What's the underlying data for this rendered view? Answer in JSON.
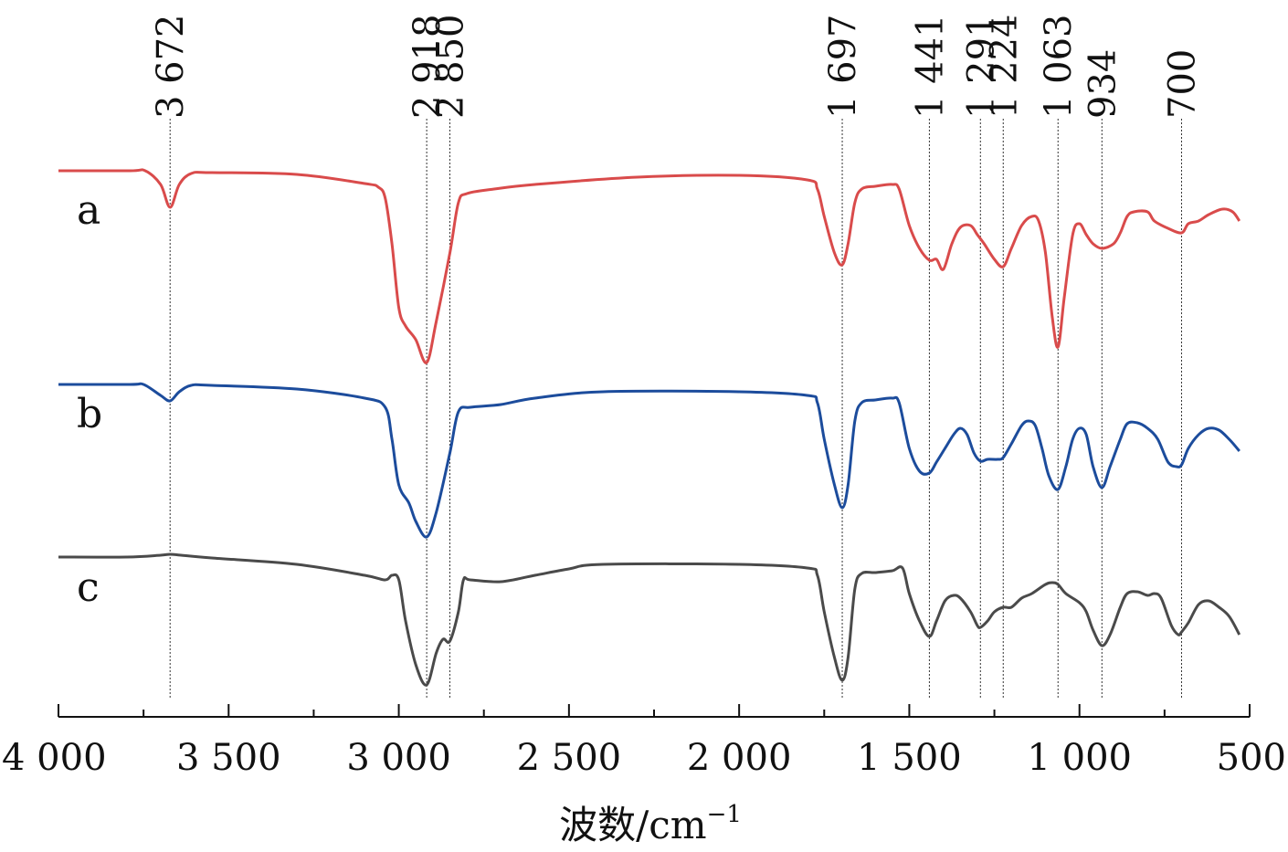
{
  "chart_data": {
    "type": "line",
    "xlabel_main": "波数/cm",
    "xlabel_sup": "−1",
    "x_range": [
      4000,
      500
    ],
    "x_reversed": true,
    "x_ticks": [
      {
        "value": 4000,
        "label": "4 000"
      },
      {
        "value": 3500,
        "label": "3 500"
      },
      {
        "value": 3000,
        "label": "3 000"
      },
      {
        "value": 2500,
        "label": "2 500"
      },
      {
        "value": 2000,
        "label": "2 000"
      },
      {
        "value": 1500,
        "label": "1 500"
      },
      {
        "value": 1000,
        "label": "1 000"
      },
      {
        "value": 500,
        "label": "500"
      }
    ],
    "peaks": [
      {
        "value": 3672,
        "label": "3 672"
      },
      {
        "value": 2918,
        "label": "2 918"
      },
      {
        "value": 2850,
        "label": "2 850"
      },
      {
        "value": 1697,
        "label": "1 697"
      },
      {
        "value": 1441,
        "label": "1 441"
      },
      {
        "value": 1291,
        "label": "1 291"
      },
      {
        "value": 1224,
        "label": "1 224"
      },
      {
        "value": 1063,
        "label": "1 063"
      },
      {
        "value": 934,
        "label": "934"
      },
      {
        "value": 700,
        "label": "700"
      }
    ],
    "series": [
      {
        "name": "a",
        "color": "#d94b4b",
        "base": 187,
        "points": [
          [
            4000,
            0
          ],
          [
            3790,
            0
          ],
          [
            3745,
            0
          ],
          [
            3700,
            15
          ],
          [
            3672,
            40
          ],
          [
            3645,
            15
          ],
          [
            3610,
            3
          ],
          [
            3550,
            2
          ],
          [
            3300,
            4
          ],
          [
            3100,
            14
          ],
          [
            3060,
            18
          ],
          [
            3040,
            30
          ],
          [
            3020,
            80
          ],
          [
            3000,
            150
          ],
          [
            2980,
            170
          ],
          [
            2950,
            185
          ],
          [
            2918,
            210
          ],
          [
            2890,
            165
          ],
          [
            2850,
            90
          ],
          [
            2825,
            35
          ],
          [
            2800,
            25
          ],
          [
            2720,
            20
          ],
          [
            2600,
            15
          ],
          [
            2300,
            7
          ],
          [
            2000,
            5
          ],
          [
            1800,
            10
          ],
          [
            1770,
            20
          ],
          [
            1750,
            50
          ],
          [
            1720,
            90
          ],
          [
            1697,
            103
          ],
          [
            1680,
            80
          ],
          [
            1660,
            35
          ],
          [
            1640,
            20
          ],
          [
            1600,
            17
          ],
          [
            1550,
            15
          ],
          [
            1530,
            20
          ],
          [
            1500,
            60
          ],
          [
            1470,
            85
          ],
          [
            1441,
            98
          ],
          [
            1420,
            97
          ],
          [
            1400,
            108
          ],
          [
            1375,
            80
          ],
          [
            1350,
            62
          ],
          [
            1320,
            60
          ],
          [
            1300,
            70
          ],
          [
            1280,
            80
          ],
          [
            1250,
            97
          ],
          [
            1224,
            105
          ],
          [
            1200,
            85
          ],
          [
            1170,
            60
          ],
          [
            1140,
            50
          ],
          [
            1120,
            55
          ],
          [
            1100,
            90
          ],
          [
            1080,
            160
          ],
          [
            1063,
            193
          ],
          [
            1045,
            140
          ],
          [
            1020,
            70
          ],
          [
            1000,
            58
          ],
          [
            980,
            70
          ],
          [
            960,
            80
          ],
          [
            934,
            85
          ],
          [
            900,
            80
          ],
          [
            880,
            68
          ],
          [
            860,
            50
          ],
          [
            840,
            45
          ],
          [
            800,
            45
          ],
          [
            780,
            55
          ],
          [
            740,
            63
          ],
          [
            700,
            68
          ],
          [
            680,
            58
          ],
          [
            650,
            55
          ],
          [
            620,
            48
          ],
          [
            580,
            42
          ],
          [
            550,
            45
          ],
          [
            530,
            55
          ]
        ]
      },
      {
        "name": "b",
        "color": "#1c4c9c",
        "base": 421,
        "points": [
          [
            4000,
            0
          ],
          [
            3790,
            0
          ],
          [
            3750,
            0
          ],
          [
            3700,
            12
          ],
          [
            3672,
            18
          ],
          [
            3645,
            8
          ],
          [
            3610,
            1
          ],
          [
            3550,
            1
          ],
          [
            3300,
            5
          ],
          [
            3100,
            15
          ],
          [
            3040,
            25
          ],
          [
            3020,
            60
          ],
          [
            3000,
            110
          ],
          [
            2970,
            130
          ],
          [
            2950,
            150
          ],
          [
            2918,
            167
          ],
          [
            2890,
            140
          ],
          [
            2850,
            75
          ],
          [
            2825,
            30
          ],
          [
            2790,
            25
          ],
          [
            2700,
            22
          ],
          [
            2600,
            15
          ],
          [
            2400,
            8
          ],
          [
            2000,
            8
          ],
          [
            1800,
            12
          ],
          [
            1770,
            20
          ],
          [
            1750,
            60
          ],
          [
            1720,
            110
          ],
          [
            1697,
            135
          ],
          [
            1680,
            110
          ],
          [
            1660,
            40
          ],
          [
            1640,
            20
          ],
          [
            1600,
            17
          ],
          [
            1550,
            15
          ],
          [
            1530,
            20
          ],
          [
            1500,
            70
          ],
          [
            1470,
            95
          ],
          [
            1441,
            97
          ],
          [
            1420,
            85
          ],
          [
            1395,
            70
          ],
          [
            1370,
            55
          ],
          [
            1350,
            48
          ],
          [
            1330,
            55
          ],
          [
            1310,
            75
          ],
          [
            1291,
            84
          ],
          [
            1270,
            82
          ],
          [
            1240,
            82
          ],
          [
            1224,
            80
          ],
          [
            1200,
            65
          ],
          [
            1170,
            45
          ],
          [
            1150,
            40
          ],
          [
            1130,
            45
          ],
          [
            1110,
            70
          ],
          [
            1090,
            100
          ],
          [
            1063,
            115
          ],
          [
            1040,
            90
          ],
          [
            1020,
            60
          ],
          [
            1000,
            48
          ],
          [
            980,
            55
          ],
          [
            960,
            90
          ],
          [
            934,
            113
          ],
          [
            910,
            90
          ],
          [
            880,
            60
          ],
          [
            860,
            43
          ],
          [
            830,
            42
          ],
          [
            800,
            48
          ],
          [
            770,
            60
          ],
          [
            740,
            85
          ],
          [
            715,
            90
          ],
          [
            700,
            88
          ],
          [
            680,
            70
          ],
          [
            650,
            55
          ],
          [
            620,
            48
          ],
          [
            590,
            50
          ],
          [
            560,
            60
          ],
          [
            530,
            73
          ]
        ]
      },
      {
        "name": "c",
        "color": "#4a4a4a",
        "base": 610,
        "points": [
          [
            4000,
            0
          ],
          [
            3800,
            0
          ],
          [
            3700,
            -2
          ],
          [
            3672,
            -3
          ],
          [
            3640,
            -2
          ],
          [
            3550,
            1
          ],
          [
            3300,
            8
          ],
          [
            3100,
            20
          ],
          [
            3040,
            25
          ],
          [
            3020,
            20
          ],
          [
            3000,
            25
          ],
          [
            2980,
            70
          ],
          [
            2950,
            118
          ],
          [
            2918,
            140
          ],
          [
            2890,
            105
          ],
          [
            2870,
            90
          ],
          [
            2850,
            92
          ],
          [
            2825,
            60
          ],
          [
            2810,
            25
          ],
          [
            2790,
            25
          ],
          [
            2700,
            27
          ],
          [
            2600,
            20
          ],
          [
            2500,
            13
          ],
          [
            2400,
            8
          ],
          [
            2000,
            8
          ],
          [
            1800,
            12
          ],
          [
            1770,
            20
          ],
          [
            1750,
            60
          ],
          [
            1720,
            110
          ],
          [
            1697,
            135
          ],
          [
            1680,
            110
          ],
          [
            1660,
            35
          ],
          [
            1640,
            18
          ],
          [
            1600,
            17
          ],
          [
            1550,
            15
          ],
          [
            1520,
            12
          ],
          [
            1500,
            40
          ],
          [
            1470,
            70
          ],
          [
            1441,
            87
          ],
          [
            1420,
            70
          ],
          [
            1395,
            48
          ],
          [
            1370,
            42
          ],
          [
            1350,
            45
          ],
          [
            1320,
            60
          ],
          [
            1300,
            75
          ],
          [
            1291,
            77
          ],
          [
            1270,
            70
          ],
          [
            1250,
            60
          ],
          [
            1224,
            55
          ],
          [
            1200,
            55
          ],
          [
            1170,
            45
          ],
          [
            1140,
            40
          ],
          [
            1100,
            30
          ],
          [
            1080,
            28
          ],
          [
            1063,
            30
          ],
          [
            1040,
            40
          ],
          [
            1000,
            50
          ],
          [
            980,
            60
          ],
          [
            960,
            80
          ],
          [
            934,
            97
          ],
          [
            910,
            85
          ],
          [
            880,
            55
          ],
          [
            860,
            40
          ],
          [
            830,
            38
          ],
          [
            800,
            42
          ],
          [
            780,
            40
          ],
          [
            760,
            45
          ],
          [
            730,
            75
          ],
          [
            710,
            85
          ],
          [
            700,
            82
          ],
          [
            680,
            72
          ],
          [
            650,
            52
          ],
          [
            620,
            48
          ],
          [
            590,
            55
          ],
          [
            560,
            65
          ],
          [
            530,
            85
          ]
        ]
      }
    ]
  }
}
